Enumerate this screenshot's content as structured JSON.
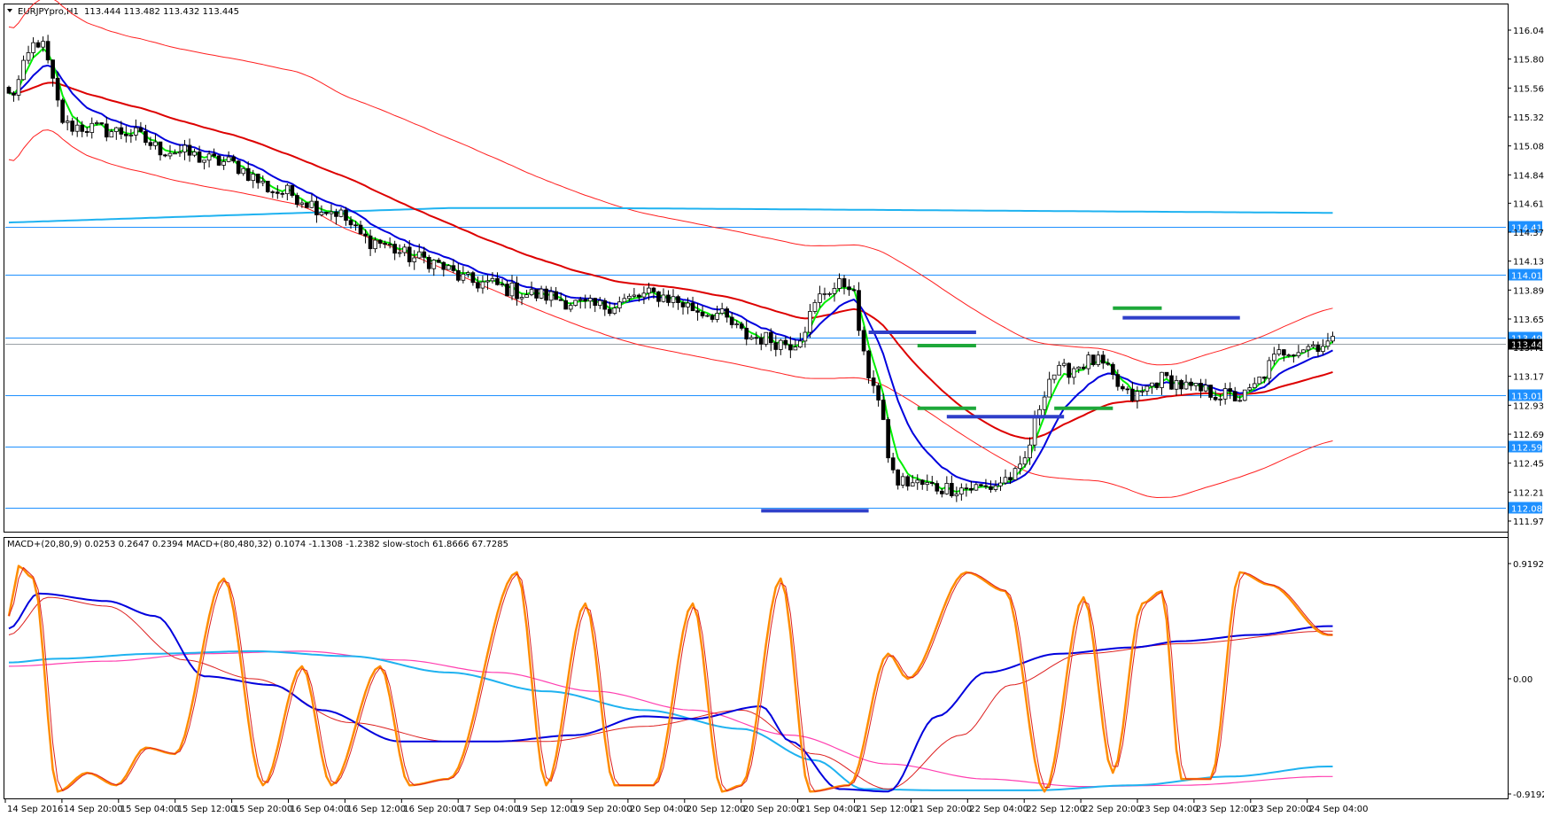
{
  "header": {
    "symbol": "EURJPYpro,H1",
    "ohlc": "113.444 113.482 113.432 113.445",
    "indicators": "MACD+(20,80,9) 0.0253 0.2647 0.2394  MACD+(80,480,32) 0.1074 -1.1308 -1.2382  slow-stoch 61.8666 67.7285"
  },
  "colors": {
    "bull_candle": "#ffffff",
    "bear_candle": "#000000",
    "level_line": "#1e90ff",
    "price_tag_bg": "#1e90ff",
    "ema_fast": "#00ee00",
    "ema_mid": "#0000dd",
    "ema_slow": "#dd0000",
    "ema_long": "#1fb2f0",
    "envelope": "#ff2020",
    "stoch": "#ff8c00",
    "macd1": "#0000dd",
    "macd1_signal": "#dd2020",
    "macd2": "#1fb2f0",
    "macd2_signal": "#ff3fb0"
  },
  "chart_data": [
    {
      "type": "candlestick",
      "title": "EURJPYpro,H1",
      "y_ticks": [
        "116.045",
        "115.805",
        "115.565",
        "115.325",
        "115.085",
        "114.845",
        "114.610",
        "114.370",
        "114.130",
        "113.890",
        "113.650",
        "113.415",
        "113.175",
        "112.935",
        "112.695",
        "112.455",
        "112.215",
        "111.975"
      ],
      "ylim": [
        111.975,
        116.045
      ],
      "x_labels": [
        "14 Sep 2016",
        "14 Sep 20:00",
        "15 Sep 04:00",
        "15 Sep 12:00",
        "15 Sep 20:00",
        "16 Sep 04:00",
        "16 Sep 12:00",
        "16 Sep 20:00",
        "17 Sep 04:00",
        "19 Sep 12:00",
        "19 Sep 20:00",
        "20 Sep 04:00",
        "20 Sep 12:00",
        "20 Sep 20:00",
        "21 Sep 04:00",
        "21 Sep 12:00",
        "21 Sep 20:00",
        "22 Sep 04:00",
        "22 Sep 12:00",
        "22 Sep 20:00",
        "23 Sep 04:00",
        "23 Sep 12:00",
        "23 Sep 20:00",
        "24 Sep 04:00"
      ],
      "levels": [
        {
          "price": 114.413,
          "label": "114.413"
        },
        {
          "price": 114.015,
          "label": "114.015"
        },
        {
          "price": 113.494,
          "label": "113.494"
        },
        {
          "price": 113.016,
          "label": "113.016"
        },
        {
          "price": 112.59,
          "label": "112.590"
        },
        {
          "price": 112.083,
          "label": "112.083"
        }
      ],
      "current_price": {
        "price": 113.445,
        "label": "113.445"
      },
      "trend_waypoints": [
        [
          0,
          115.5
        ],
        [
          6,
          115.95
        ],
        [
          12,
          115.25
        ],
        [
          24,
          115.2
        ],
        [
          32,
          115.05
        ],
        [
          44,
          114.95
        ],
        [
          56,
          114.7
        ],
        [
          66,
          114.55
        ],
        [
          74,
          114.3
        ],
        [
          84,
          114.15
        ],
        [
          96,
          113.95
        ],
        [
          108,
          113.85
        ],
        [
          120,
          113.75
        ],
        [
          132,
          113.85
        ],
        [
          144,
          113.7
        ],
        [
          152,
          113.5
        ],
        [
          160,
          113.45
        ],
        [
          168,
          113.9
        ],
        [
          172,
          113.95
        ],
        [
          176,
          113.2
        ],
        [
          182,
          112.3
        ],
        [
          192,
          112.25
        ],
        [
          200,
          112.25
        ],
        [
          206,
          112.35
        ],
        [
          214,
          113.2
        ],
        [
          222,
          113.3
        ],
        [
          230,
          113.0
        ],
        [
          236,
          113.15
        ],
        [
          244,
          113.05
        ],
        [
          252,
          113.0
        ],
        [
          262,
          113.4
        ],
        [
          270,
          113.45
        ]
      ],
      "markers": [
        {
          "price": 112.06,
          "from": 154,
          "to": 176,
          "color": "#2f3fc9"
        },
        {
          "price": 113.54,
          "from": 176,
          "to": 198,
          "color": "#2f3fc9"
        },
        {
          "price": 113.43,
          "from": 186,
          "to": 198,
          "color": "#1ea83a"
        },
        {
          "price": 112.91,
          "from": 186,
          "to": 198,
          "color": "#1ea83a"
        },
        {
          "price": 112.84,
          "from": 192,
          "to": 216,
          "color": "#2f3fc9"
        },
        {
          "price": 112.91,
          "from": 214,
          "to": 226,
          "color": "#1ea83a"
        },
        {
          "price": 113.74,
          "from": 226,
          "to": 236,
          "color": "#1ea83a"
        },
        {
          "price": 113.66,
          "from": 228,
          "to": 252,
          "color": "#2f3fc9"
        }
      ]
    },
    {
      "type": "line",
      "title": "MACD+ / slow-stoch",
      "y_ticks": [
        "0.9192",
        "0.00",
        "-0.9192"
      ],
      "ylim": [
        -0.9192,
        0.9192
      ],
      "series": [
        {
          "name": "slow-stoch",
          "waypoints": [
            [
              0,
              0.5
            ],
            [
              2,
              0.9
            ],
            [
              5,
              0.8
            ],
            [
              10,
              -0.9
            ],
            [
              16,
              -0.75
            ],
            [
              22,
              -0.85
            ],
            [
              28,
              -0.55
            ],
            [
              34,
              -0.6
            ],
            [
              44,
              0.8
            ],
            [
              52,
              -0.85
            ],
            [
              60,
              0.1
            ],
            [
              66,
              -0.85
            ],
            [
              76,
              0.1
            ],
            [
              82,
              -0.85
            ],
            [
              90,
              -0.8
            ],
            [
              104,
              0.85
            ],
            [
              110,
              -0.85
            ],
            [
              118,
              0.6
            ],
            [
              124,
              -0.85
            ],
            [
              132,
              -0.85
            ],
            [
              140,
              0.6
            ],
            [
              146,
              -0.9
            ],
            [
              150,
              -0.85
            ],
            [
              158,
              0.8
            ],
            [
              164,
              -0.9
            ],
            [
              172,
              -0.85
            ],
            [
              180,
              0.2
            ],
            [
              184,
              0.0
            ],
            [
              196,
              0.85
            ],
            [
              204,
              0.7
            ],
            [
              212,
              -0.9
            ],
            [
              220,
              0.65
            ],
            [
              226,
              -0.75
            ],
            [
              232,
              0.6
            ],
            [
              236,
              0.7
            ],
            [
              240,
              -0.8
            ],
            [
              246,
              -0.8
            ],
            [
              252,
              0.85
            ],
            [
              258,
              0.75
            ],
            [
              270,
              0.35
            ]
          ]
        },
        {
          "name": "MACD+(20,80,9)",
          "waypoints": [
            [
              0,
              0.4
            ],
            [
              6,
              0.68
            ],
            [
              20,
              0.62
            ],
            [
              30,
              0.5
            ],
            [
              40,
              0.02
            ],
            [
              54,
              -0.05
            ],
            [
              64,
              -0.25
            ],
            [
              80,
              -0.5
            ],
            [
              100,
              -0.5
            ],
            [
              116,
              -0.45
            ],
            [
              130,
              -0.3
            ],
            [
              140,
              -0.32
            ],
            [
              154,
              -0.22
            ],
            [
              160,
              -0.5
            ],
            [
              170,
              -0.88
            ],
            [
              180,
              -0.9
            ],
            [
              190,
              -0.3
            ],
            [
              200,
              0.05
            ],
            [
              215,
              0.2
            ],
            [
              230,
              0.25
            ],
            [
              240,
              0.3
            ],
            [
              255,
              0.35
            ],
            [
              270,
              0.42
            ]
          ]
        },
        {
          "name": "MACD+(20,80,9) signal",
          "waypoints": [
            [
              0,
              0.35
            ],
            [
              8,
              0.65
            ],
            [
              20,
              0.58
            ],
            [
              36,
              0.15
            ],
            [
              50,
              0.0
            ],
            [
              70,
              -0.35
            ],
            [
              90,
              -0.5
            ],
            [
              110,
              -0.5
            ],
            [
              130,
              -0.38
            ],
            [
              150,
              -0.25
            ],
            [
              165,
              -0.6
            ],
            [
              180,
              -0.88
            ],
            [
              195,
              -0.45
            ],
            [
              205,
              -0.05
            ],
            [
              220,
              0.2
            ],
            [
              240,
              0.28
            ],
            [
              270,
              0.38
            ]
          ]
        },
        {
          "name": "MACD+(80,480,32)",
          "waypoints": [
            [
              0,
              0.13
            ],
            [
              10,
              0.16
            ],
            [
              30,
              0.2
            ],
            [
              50,
              0.22
            ],
            [
              70,
              0.18
            ],
            [
              90,
              0.05
            ],
            [
              110,
              -0.1
            ],
            [
              130,
              -0.25
            ],
            [
              150,
              -0.4
            ],
            [
              165,
              -0.65
            ],
            [
              175,
              -0.88
            ],
            [
              190,
              -0.89
            ],
            [
              210,
              -0.89
            ],
            [
              230,
              -0.85
            ],
            [
              250,
              -0.78
            ],
            [
              270,
              -0.7
            ]
          ]
        },
        {
          "name": "MACD+(80,480,32) signal",
          "waypoints": [
            [
              0,
              0.1
            ],
            [
              20,
              0.14
            ],
            [
              40,
              0.2
            ],
            [
              60,
              0.22
            ],
            [
              80,
              0.15
            ],
            [
              100,
              0.05
            ],
            [
              120,
              -0.1
            ],
            [
              140,
              -0.25
            ],
            [
              160,
              -0.45
            ],
            [
              180,
              -0.68
            ],
            [
              200,
              -0.8
            ],
            [
              220,
              -0.86
            ],
            [
              240,
              -0.85
            ],
            [
              270,
              -0.78
            ]
          ]
        }
      ]
    }
  ]
}
